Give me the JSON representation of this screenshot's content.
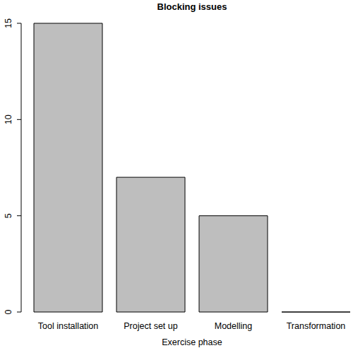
{
  "chart_data": {
    "type": "bar",
    "title": "Blocking issues",
    "x_label": "Exercise phase",
    "categories": [
      "Tool installation",
      "Project set up",
      "Modelling",
      "Transformation"
    ],
    "values": [
      15,
      7,
      5,
      0
    ],
    "color": "#bebebe",
    "ylim": [
      0,
      15
    ],
    "yticks": [
      0,
      5,
      10,
      15
    ],
    "grid": false
  }
}
